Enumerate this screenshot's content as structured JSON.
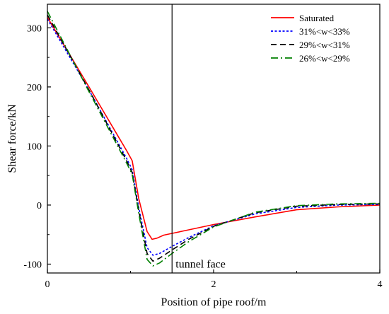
{
  "chart_data": {
    "type": "line",
    "xlabel": "Position of pipe roof/m",
    "ylabel": "Shear force/kN",
    "xlim": [
      0,
      4
    ],
    "ylim": [
      -115,
      340
    ],
    "xticks": [
      0,
      2,
      4
    ],
    "yticks": [
      -100,
      0,
      100,
      200,
      300
    ],
    "grid": false,
    "legend_position": "top-right",
    "vline": {
      "x": 1.5,
      "label": "tunnel face"
    },
    "series": [
      {
        "name": "Saturated",
        "color": "#ff0000",
        "dash": "solid",
        "x": [
          0,
          0.5,
          0.95,
          1.02,
          1.1,
          1.2,
          1.26,
          1.32,
          1.4,
          1.5,
          1.7,
          2.0,
          2.5,
          3.0,
          3.5,
          4.0
        ],
        "y": [
          318,
          200,
          93,
          75,
          10,
          -45,
          -58,
          -56,
          -51,
          -48,
          -42,
          -33,
          -20,
          -8,
          -3,
          0
        ]
      },
      {
        "name": "31%<w<33%",
        "color": "#0000ff",
        "dash": "dotted",
        "x": [
          0,
          0.5,
          0.95,
          1.02,
          1.1,
          1.2,
          1.27,
          1.35,
          1.5,
          1.7,
          2.0,
          2.5,
          3.0,
          3.5,
          4.0
        ],
        "y": [
          315,
          195,
          80,
          60,
          -5,
          -72,
          -85,
          -82,
          -70,
          -55,
          -35,
          -15,
          -4,
          0,
          1
        ]
      },
      {
        "name": "29%<w<31%",
        "color": "#000000",
        "dash": "dashed",
        "x": [
          0,
          0.5,
          0.95,
          1.02,
          1.1,
          1.2,
          1.27,
          1.35,
          1.5,
          1.7,
          2.0,
          2.5,
          3.0,
          3.5,
          4.0
        ],
        "y": [
          322,
          195,
          76,
          55,
          -10,
          -82,
          -95,
          -90,
          -76,
          -58,
          -36,
          -13,
          -2,
          1,
          2
        ]
      },
      {
        "name": "26%<w<29%",
        "color": "#008000",
        "dash": "dashdot",
        "x": [
          0,
          0.5,
          0.95,
          1.02,
          1.1,
          1.2,
          1.27,
          1.35,
          1.5,
          1.7,
          2.0,
          2.5,
          3.0,
          3.5,
          4.0
        ],
        "y": [
          328,
          192,
          72,
          52,
          -15,
          -92,
          -103,
          -98,
          -82,
          -62,
          -37,
          -12,
          -1,
          2,
          3
        ]
      }
    ]
  }
}
